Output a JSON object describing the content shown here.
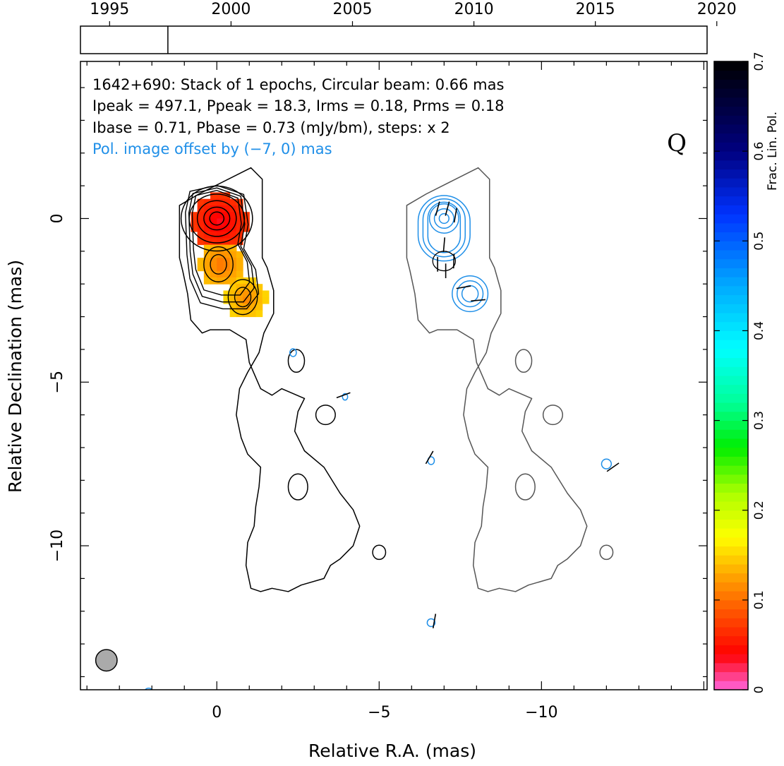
{
  "chart_data": {
    "type": "contour",
    "timeline": {
      "ticks": [
        "1995",
        "2000",
        "2005",
        "2010",
        "2015",
        "2020"
      ],
      "range": [
        1993.8,
        2019.6
      ],
      "epoch_marker": 1997.4
    },
    "info_lines": [
      "1642+690: Stack of 1 epochs, Circular beam: 0.66 mas",
      "Ipeak = 497.1, Ppeak = 18.3, Irms = 0.18, Prms = 0.18",
      "Ibase = 0.71, Pbase = 0.73 (mJy/bm), steps: x 2"
    ],
    "offset_note": "Pol. image offset by (−7, 0) mas",
    "quality_grade": "Q",
    "xlabel": "Relative R.A. (mas)",
    "ylabel": "Relative Declination (mas)",
    "xlim": [
      4.2,
      -15.1
    ],
    "ylim": [
      -14.4,
      4.8
    ],
    "x_ticks": [
      {
        "v": 0,
        "label": "0"
      },
      {
        "v": -5,
        "label": "−5"
      },
      {
        "v": -10,
        "label": "−10"
      }
    ],
    "y_ticks": [
      {
        "v": 0,
        "label": "0"
      },
      {
        "v": -5,
        "label": "−5"
      },
      {
        "v": -10,
        "label": "−10"
      }
    ],
    "colorbar": {
      "label": "Frac. Lin. Pol.",
      "range": [
        0,
        0.7
      ],
      "ticks": [
        "0",
        "0.1",
        "0.2",
        "0.3",
        "0.4",
        "0.5",
        "0.6",
        "0.7"
      ],
      "stops": [
        {
          "v": 0.0,
          "color": "#ff66e0"
        },
        {
          "v": 0.04,
          "color": "#ff0000"
        },
        {
          "v": 0.09,
          "color": "#ff5a00"
        },
        {
          "v": 0.13,
          "color": "#ffaa00"
        },
        {
          "v": 0.17,
          "color": "#ffff00"
        },
        {
          "v": 0.22,
          "color": "#aaff00"
        },
        {
          "v": 0.27,
          "color": "#00ee00"
        },
        {
          "v": 0.32,
          "color": "#00ff99"
        },
        {
          "v": 0.38,
          "color": "#00ffff"
        },
        {
          "v": 0.45,
          "color": "#00aaff"
        },
        {
          "v": 0.53,
          "color": "#0033ff"
        },
        {
          "v": 0.6,
          "color": "#000080"
        },
        {
          "v": 0.7,
          "color": "#000000"
        }
      ]
    },
    "frac_pol_blobs": [
      {
        "x": 0.0,
        "y": 0.0,
        "r": 0.85,
        "frac": 0.05
      },
      {
        "x": -0.05,
        "y": -1.3,
        "r": 0.7,
        "frac": 0.12
      },
      {
        "x": -0.8,
        "y": -2.35,
        "r": 0.62,
        "frac": 0.13
      }
    ],
    "stokes_i_contours": {
      "color": "#000000",
      "core": {
        "x": 0.0,
        "y": 0.0
      },
      "jet": [
        {
          "x": -0.05,
          "y": -1.4
        },
        {
          "x": -0.8,
          "y": -2.4
        }
      ],
      "nested_core_levels": [
        {
          "rx": 1.1,
          "ry": 1.0
        },
        {
          "rx": 0.85,
          "ry": 0.75
        },
        {
          "rx": 0.6,
          "ry": 0.55
        },
        {
          "rx": 0.4,
          "ry": 0.35
        },
        {
          "rx": 0.22,
          "ry": 0.2
        }
      ],
      "lowest_contour_ra": [
        [
          -1.4,
          1.2
        ],
        [
          -1.05,
          1.55
        ],
        [
          0.55,
          0.75
        ],
        [
          1.15,
          0.4
        ],
        [
          1.15,
          -1.2
        ],
        [
          1.05,
          -1.6
        ],
        [
          0.9,
          -2.3
        ],
        [
          0.8,
          -3.1
        ],
        [
          0.45,
          -3.5
        ],
        [
          0.2,
          -3.4
        ],
        [
          -0.4,
          -3.4
        ],
        [
          -0.9,
          -3.7
        ],
        [
          -1.0,
          -4.4
        ],
        [
          -1.35,
          -5.2
        ],
        [
          -1.7,
          -5.4
        ],
        [
          -2.0,
          -5.2
        ],
        [
          -2.7,
          -5.5
        ],
        [
          -2.5,
          -5.9
        ],
        [
          -2.4,
          -6.5
        ],
        [
          -2.7,
          -7.1
        ],
        [
          -3.3,
          -7.6
        ],
        [
          -3.8,
          -8.4
        ],
        [
          -4.2,
          -8.9
        ],
        [
          -4.4,
          -9.4
        ],
        [
          -4.2,
          -10.0
        ],
        [
          -3.8,
          -10.4
        ],
        [
          -3.5,
          -10.6
        ],
        [
          -3.3,
          -11.0
        ],
        [
          -2.6,
          -11.2
        ],
        [
          -2.2,
          -11.4
        ],
        [
          -1.7,
          -11.3
        ],
        [
          -1.35,
          -11.4
        ],
        [
          -1.05,
          -11.3
        ],
        [
          -0.9,
          -10.6
        ],
        [
          -0.95,
          -9.9
        ],
        [
          -1.15,
          -9.4
        ],
        [
          -1.2,
          -8.8
        ],
        [
          -1.3,
          -8.2
        ],
        [
          -1.35,
          -7.6
        ],
        [
          -0.95,
          -7.2
        ],
        [
          -0.75,
          -6.7
        ],
        [
          -0.6,
          -6.0
        ],
        [
          -0.7,
          -5.2
        ],
        [
          -0.95,
          -4.7
        ],
        [
          -1.3,
          -4.1
        ],
        [
          -1.45,
          -3.5
        ],
        [
          -1.75,
          -2.9
        ],
        [
          -1.75,
          -2.2
        ],
        [
          -1.55,
          -1.5
        ],
        [
          -1.4,
          -1.2
        ]
      ],
      "isolated": [
        {
          "x": -5.0,
          "y": -10.2,
          "rx": 0.2,
          "ry": 0.22
        },
        {
          "x": -3.35,
          "y": -6.0,
          "rx": 0.3,
          "ry": 0.3
        },
        {
          "x": -2.45,
          "y": -4.35,
          "rx": 0.25,
          "ry": 0.35
        },
        {
          "x": -2.5,
          "y": -8.2,
          "rx": 0.3,
          "ry": 0.4
        }
      ]
    },
    "pol_offset_contours": {
      "offset_x": -7,
      "outer_color": "#555555",
      "inner_color": "#1f8fe8",
      "core": {
        "x": -7.0,
        "y": 0.0
      },
      "knot": {
        "x": -7.8,
        "y": -2.3
      }
    },
    "evpa_ticks": [
      {
        "x": -6.8,
        "y": 0.3,
        "angle": 75
      },
      {
        "x": -7.1,
        "y": 0.3,
        "angle": 75
      },
      {
        "x": -7.35,
        "y": 0.1,
        "angle": 80
      },
      {
        "x": -7.0,
        "y": -0.8,
        "angle": 85
      },
      {
        "x": -7.3,
        "y": -1.3,
        "angle": 88
      },
      {
        "x": -7.05,
        "y": -1.6,
        "angle": 90
      },
      {
        "x": -6.8,
        "y": -1.4,
        "angle": 90
      },
      {
        "x": -7.6,
        "y": -2.1,
        "angle": 10
      },
      {
        "x": -8.05,
        "y": -2.5,
        "angle": 5
      },
      {
        "x": -6.55,
        "y": -7.3,
        "angle": 60
      },
      {
        "x": -12.2,
        "y": -7.6,
        "angle": 35
      },
      {
        "x": -3.9,
        "y": -5.4,
        "angle": 20
      },
      {
        "x": -6.7,
        "y": -12.3,
        "angle": 80
      }
    ],
    "pol_isolated_blue": [
      {
        "x": -2.35,
        "y": -4.1,
        "rx": 0.1,
        "ry": 0.12
      },
      {
        "x": -3.95,
        "y": -5.45,
        "rx": 0.08,
        "ry": 0.1
      },
      {
        "x": -6.6,
        "y": -7.4,
        "rx": 0.1,
        "ry": 0.12
      },
      {
        "x": -12.0,
        "y": -7.5,
        "rx": 0.15,
        "ry": 0.15
      },
      {
        "x": -6.6,
        "y": -12.35,
        "rx": 0.12,
        "ry": 0.12
      },
      {
        "x": 2.1,
        "y": -14.45,
        "rx": 0.12,
        "ry": 0.1
      }
    ],
    "beam": {
      "x": 3.4,
      "y": -13.5,
      "diameter_mas": 0.66,
      "color": "#aaaaaa"
    }
  }
}
